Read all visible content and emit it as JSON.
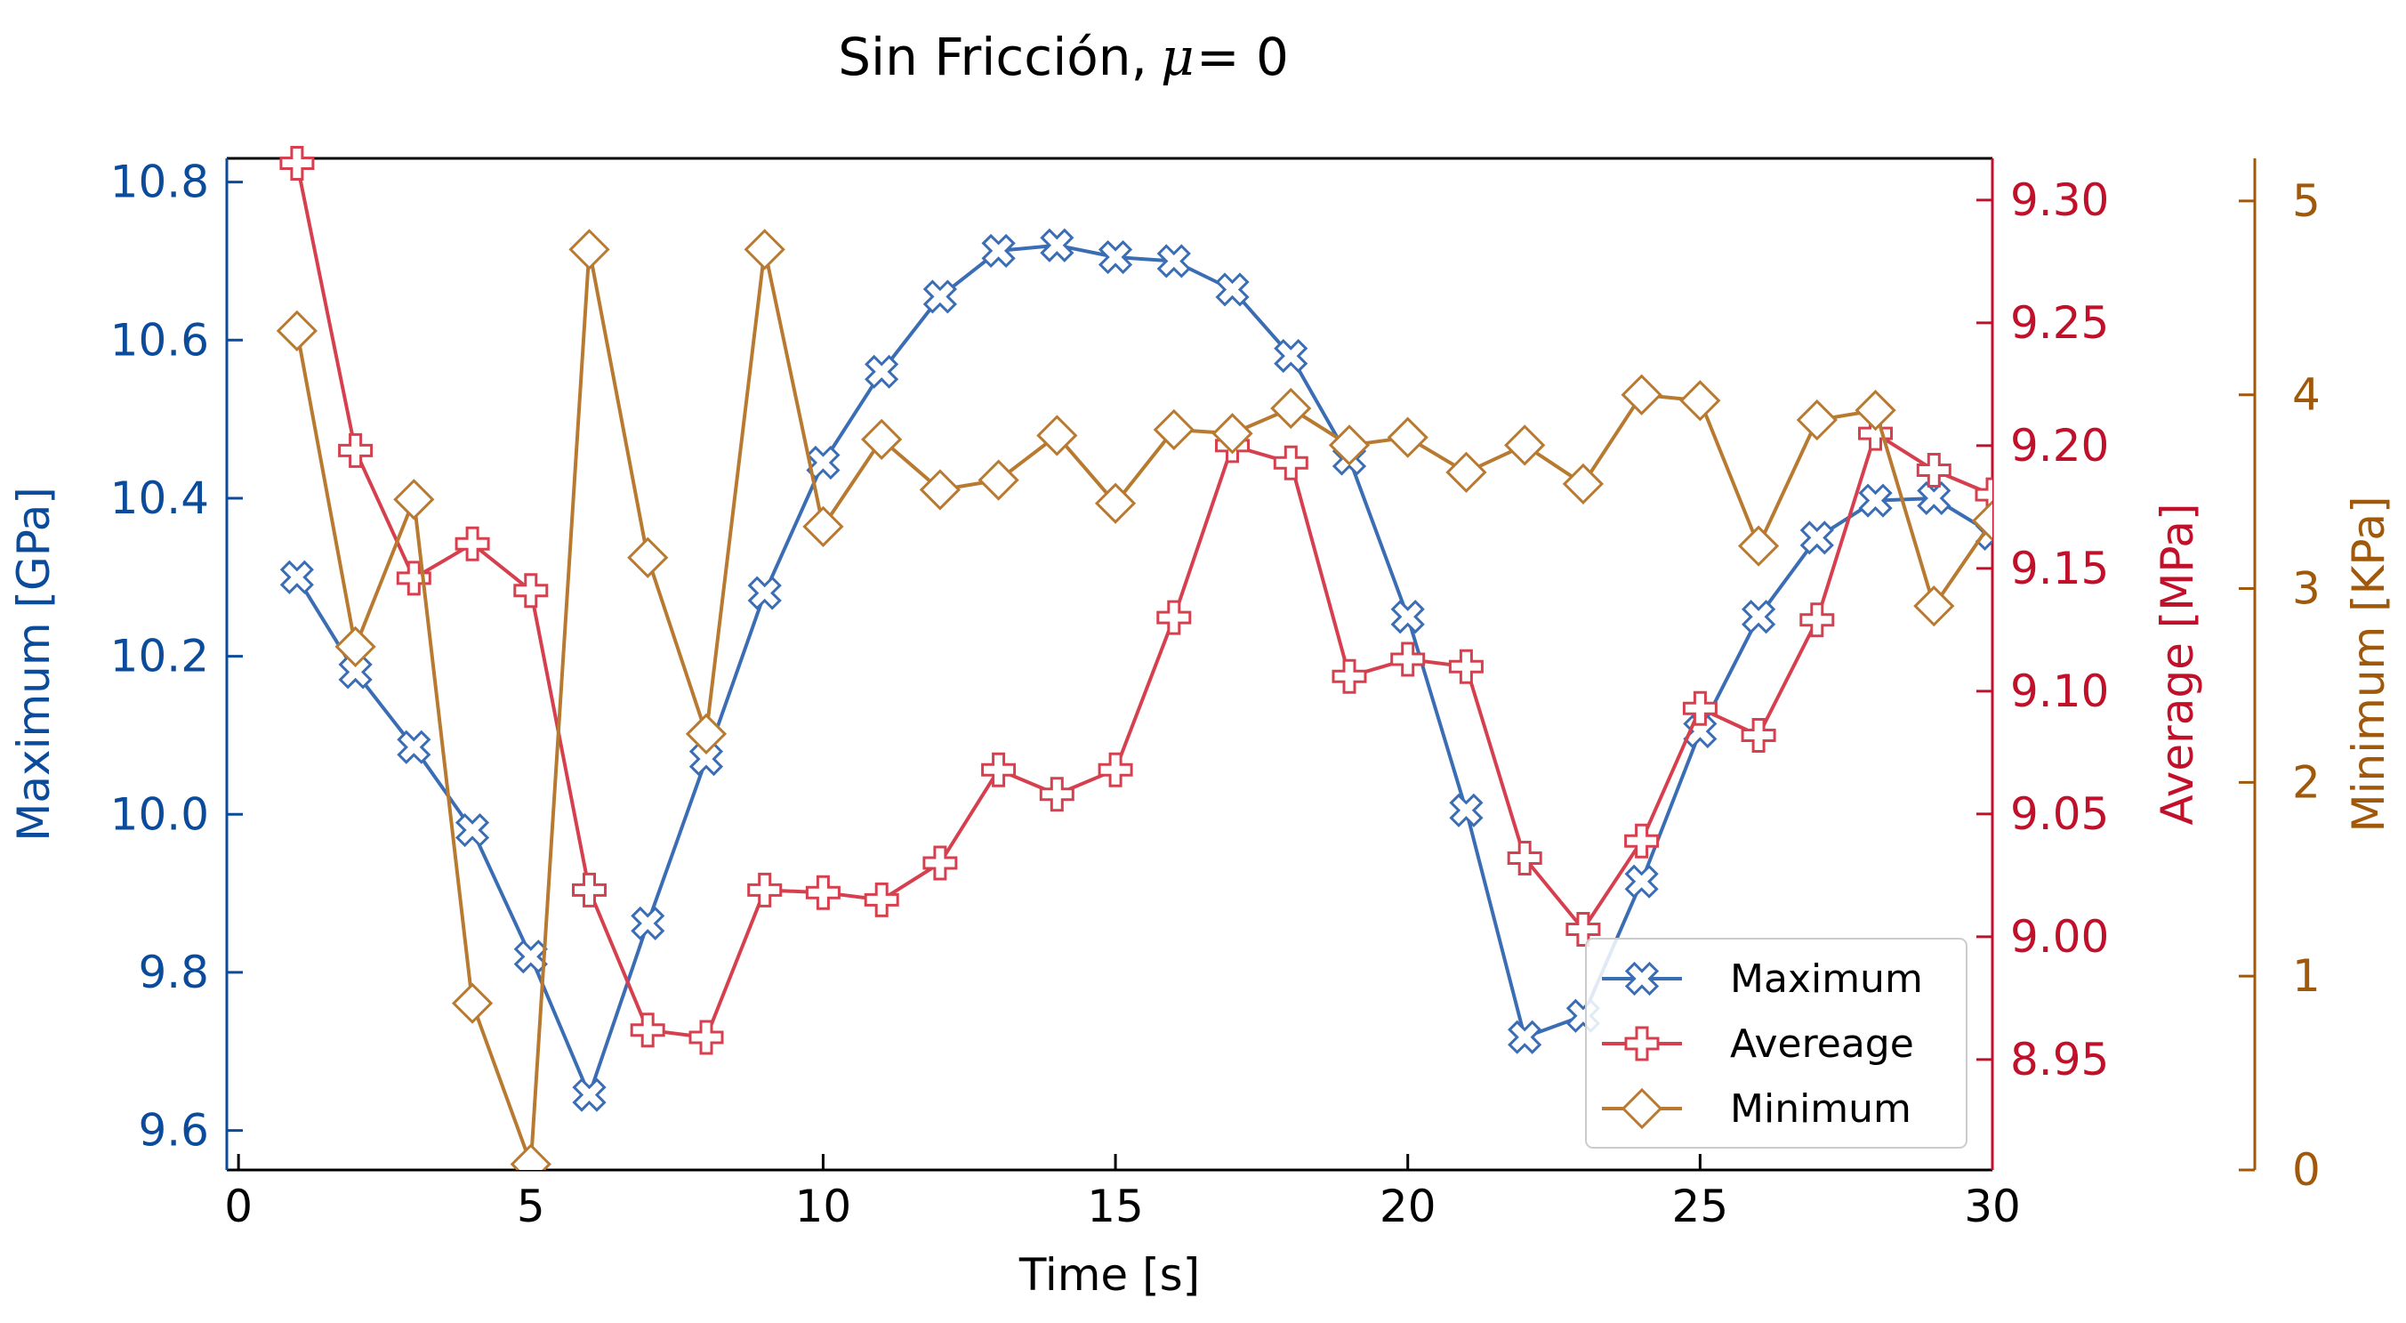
{
  "chart_data": {
    "type": "line",
    "title": {
      "prefix": "Sin Fricción,  ",
      "math_symbol": "μ",
      "math_rest": " = 0"
    },
    "xlabel": "Time [s]",
    "xlim": [
      -0.2,
      30
    ],
    "xticks": [
      0,
      5,
      10,
      15,
      20,
      25,
      30
    ],
    "grid": false,
    "legend_position": "lower-right",
    "x": [
      1,
      2,
      3,
      4,
      5,
      6,
      7,
      8,
      9,
      10,
      11,
      12,
      13,
      14,
      15,
      16,
      17,
      18,
      19,
      20,
      21,
      22,
      23,
      24,
      25,
      26,
      27,
      28,
      29,
      30
    ],
    "axes": [
      {
        "id": "maximum",
        "side": "left",
        "label": "Maximum [GPa]",
        "color": "#0b4b9c",
        "ylim": [
          9.55,
          10.83
        ],
        "ticks": [
          9.6,
          9.8,
          10.0,
          10.2,
          10.4,
          10.6,
          10.8
        ],
        "tick_labels": [
          "9.6",
          "9.8",
          "10.0",
          "10.2",
          "10.4",
          "10.6",
          "10.8"
        ]
      },
      {
        "id": "average",
        "side": "right",
        "label": "Average [MPa]",
        "color": "#c0102a",
        "ylim": [
          8.905,
          9.317
        ],
        "ticks": [
          8.95,
          9.0,
          9.05,
          9.1,
          9.15,
          9.2,
          9.25,
          9.3
        ],
        "tick_labels": [
          "8.95",
          "9.00",
          "9.05",
          "9.10",
          "9.15",
          "9.20",
          "9.25",
          "9.30"
        ]
      },
      {
        "id": "minimum",
        "side": "right-offset",
        "label": "Minimum [KPa]",
        "color": "#a0580a",
        "ylim": [
          0,
          5.22
        ],
        "ticks": [
          0,
          1,
          2,
          3,
          4,
          5
        ],
        "tick_labels": [
          "0",
          "1",
          "2",
          "3",
          "4",
          "5"
        ]
      }
    ],
    "series": [
      {
        "name": "Maximum",
        "axis": "maximum",
        "marker": "x",
        "color": "#3a6db4",
        "values": [
          10.3,
          10.18,
          10.085,
          9.98,
          9.82,
          9.645,
          9.862,
          10.07,
          10.28,
          10.445,
          10.56,
          10.655,
          10.713,
          10.72,
          10.705,
          10.7,
          10.664,
          10.58,
          10.45,
          10.25,
          10.005,
          9.718,
          9.745,
          9.915,
          10.105,
          10.25,
          10.35,
          10.397,
          10.4,
          10.355
        ]
      },
      {
        "name": "Avereage",
        "axis": "average",
        "marker": "plus",
        "color": "#d6404e",
        "values": [
          9.315,
          9.198,
          9.146,
          9.16,
          9.141,
          9.019,
          8.962,
          8.959,
          9.019,
          9.018,
          9.015,
          9.03,
          9.068,
          9.058,
          9.068,
          9.13,
          9.2,
          9.193,
          9.106,
          9.113,
          9.11,
          9.032,
          9.003,
          9.039,
          9.093,
          9.082,
          9.129,
          9.205,
          9.19,
          9.18
        ]
      },
      {
        "name": "Minimum",
        "axis": "minimum",
        "marker": "diamond",
        "color": "#b87a30",
        "values": [
          4.33,
          2.7,
          3.46,
          0.86,
          0.03,
          4.75,
          3.16,
          2.25,
          4.75,
          3.32,
          3.77,
          3.51,
          3.56,
          3.79,
          3.44,
          3.82,
          3.8,
          3.93,
          3.74,
          3.78,
          3.6,
          3.74,
          3.54,
          4.0,
          3.97,
          3.22,
          3.87,
          3.92,
          2.91,
          3.35
        ]
      }
    ]
  }
}
